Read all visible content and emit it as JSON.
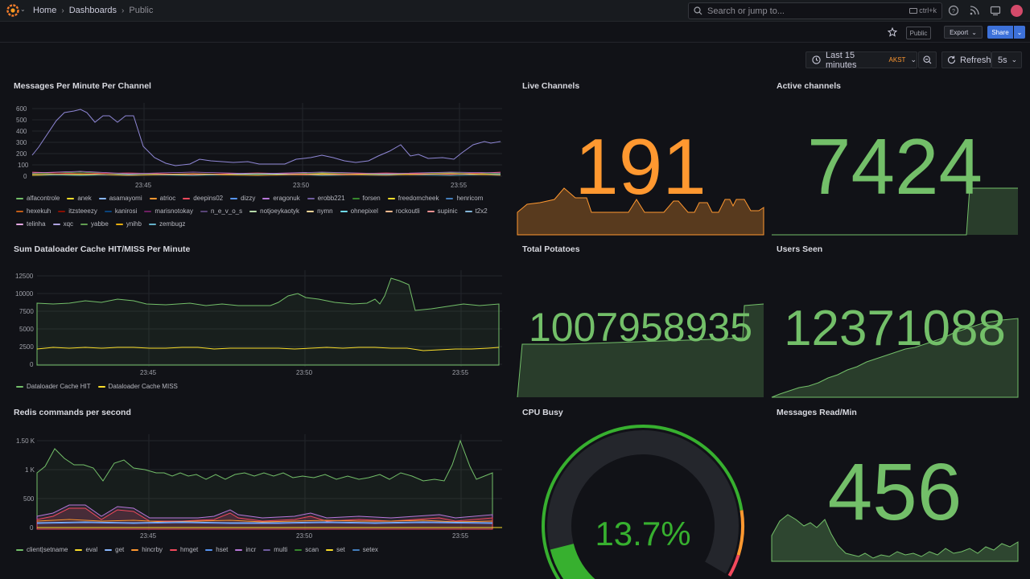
{
  "nav": {
    "breadcrumbs": [
      "Home",
      "Dashboards",
      "Public"
    ],
    "search_placeholder": "Search or jump to...",
    "search_shortcut": "ctrl+k"
  },
  "toolbar": {
    "public_badge": "Public",
    "export_label": "Export",
    "share_label": "Share"
  },
  "time": {
    "range_label": "Last 15 minutes",
    "timezone": "AKST",
    "refresh_label": "Refresh",
    "refresh_interval": "5s"
  },
  "colors": {
    "green": "#73bf69",
    "orange": "#ff9830",
    "accent": "#3d71d9"
  },
  "panels": {
    "messages": {
      "title": "Messages Per Minute Per Channel",
      "y_ticks": [
        "600",
        "500",
        "400",
        "300",
        "200",
        "100",
        "0"
      ],
      "x_ticks": [
        "23:45",
        "23:50",
        "23:55"
      ],
      "legend": [
        {
          "name": "alfacontrole",
          "color": "#73bf69"
        },
        {
          "name": "anek",
          "color": "#fade2a"
        },
        {
          "name": "asamayomi",
          "color": "#8ab8ff"
        },
        {
          "name": "atrioc",
          "color": "#ff9830"
        },
        {
          "name": "deepins02",
          "color": "#f2495c"
        },
        {
          "name": "dizzy",
          "color": "#5794f2"
        },
        {
          "name": "eragonuk",
          "color": "#b877d9"
        },
        {
          "name": "erobb221",
          "color": "#705da0"
        },
        {
          "name": "forsen",
          "color": "#37872d"
        },
        {
          "name": "freedomcheek",
          "color": "#fade2a"
        },
        {
          "name": "henricom",
          "color": "#447ebc"
        },
        {
          "name": "hexekuh",
          "color": "#c15c17"
        },
        {
          "name": "itzsteeezy",
          "color": "#890f02"
        },
        {
          "name": "kanirosi",
          "color": "#0a437c"
        },
        {
          "name": "marisnotokay",
          "color": "#6d1f62"
        },
        {
          "name": "n_e_v_o_s",
          "color": "#584477"
        },
        {
          "name": "notjoeykaotyk",
          "color": "#b7dbab"
        },
        {
          "name": "nymn",
          "color": "#f4d598"
        },
        {
          "name": "ohnepixel",
          "color": "#70dbed"
        },
        {
          "name": "rockoutli",
          "color": "#f9ba8f"
        },
        {
          "name": "supinic",
          "color": "#f29191"
        },
        {
          "name": "t2x2",
          "color": "#82b5d8"
        },
        {
          "name": "telinha",
          "color": "#e5a8e2"
        },
        {
          "name": "xqc",
          "color": "#aea2e0"
        },
        {
          "name": "yabbe",
          "color": "#629e51"
        },
        {
          "name": "ynihb",
          "color": "#e5ac0e"
        },
        {
          "name": "zembugz",
          "color": "#64b0c8"
        }
      ]
    },
    "live_channels": {
      "title": "Live Channels",
      "value": "191"
    },
    "active_channels": {
      "title": "Active channels",
      "value": "7424"
    },
    "cache": {
      "title": "Sum Dataloader Cache HIT/MISS Per Minute",
      "y_ticks": [
        "12500",
        "10000",
        "7500",
        "5000",
        "2500",
        "0"
      ],
      "x_ticks": [
        "23:45",
        "23:50",
        "23:55"
      ],
      "legend": [
        {
          "name": "Dataloader Cache HIT",
          "color": "#73bf69"
        },
        {
          "name": "Dataloader Cache MISS",
          "color": "#fade2a"
        }
      ]
    },
    "total_potatoes": {
      "title": "Total Potatoes",
      "value": "1007958935"
    },
    "users_seen": {
      "title": "Users Seen",
      "value": "12371088"
    },
    "redis": {
      "title": "Redis commands per second",
      "y_ticks": [
        "1.50 K",
        "1 K",
        "500",
        "0"
      ],
      "x_ticks": [
        "23:45",
        "23:50",
        "23:55"
      ],
      "legend": [
        {
          "name": "client|setname",
          "color": "#73bf69"
        },
        {
          "name": "eval",
          "color": "#fade2a"
        },
        {
          "name": "get",
          "color": "#8ab8ff"
        },
        {
          "name": "hincrby",
          "color": "#ff9830"
        },
        {
          "name": "hmget",
          "color": "#f2495c"
        },
        {
          "name": "hset",
          "color": "#5794f2"
        },
        {
          "name": "incr",
          "color": "#b877d9"
        },
        {
          "name": "multi",
          "color": "#705da0"
        },
        {
          "name": "scan",
          "color": "#37872d"
        },
        {
          "name": "set",
          "color": "#fade2a"
        },
        {
          "name": "setex",
          "color": "#447ebc"
        }
      ]
    },
    "cpu_busy": {
      "title": "CPU Busy",
      "value": "13.7%",
      "fraction": 0.137
    },
    "messages_read": {
      "title": "Messages Read/Min",
      "value": "456"
    }
  }
}
